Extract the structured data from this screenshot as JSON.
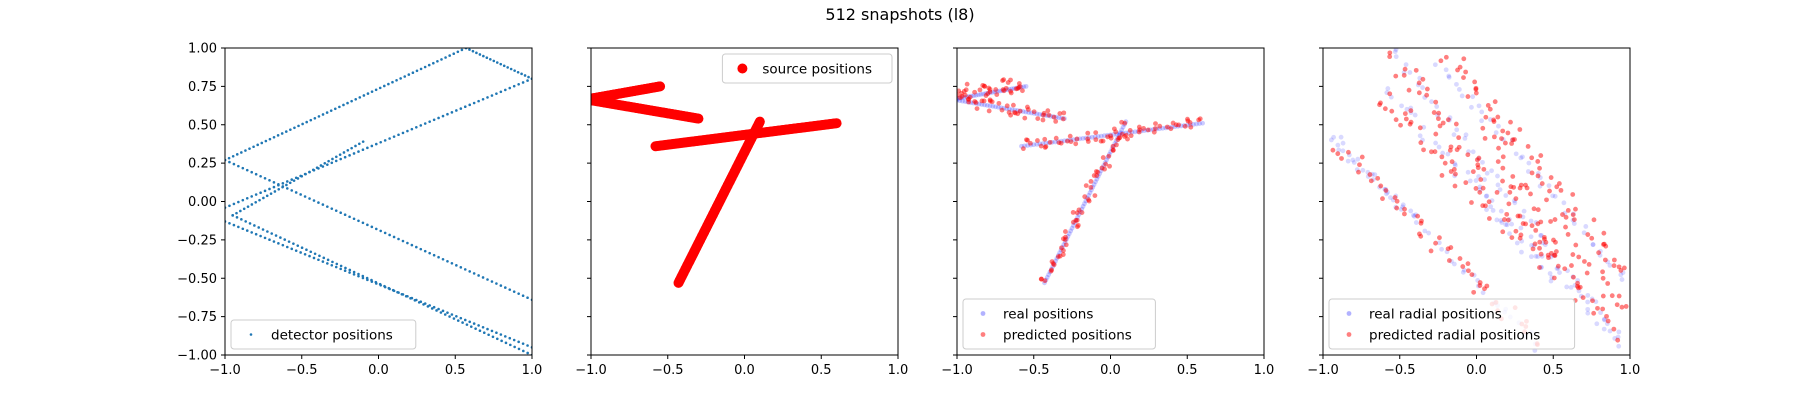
{
  "figure": {
    "title": "512 snapshots (l8)"
  },
  "chart_data": [
    {
      "type": "scatter",
      "xlim": [
        -1,
        1
      ],
      "ylim": [
        -1,
        1
      ],
      "xticks": [
        "−1.0",
        "−0.5",
        "0.0",
        "0.5",
        "1.0"
      ],
      "yticks": [
        "1.00",
        "0.75",
        "0.50",
        "0.25",
        "0.00",
        "−0.25",
        "−0.50",
        "−0.75",
        "−1.00"
      ],
      "show_yticklabels": true,
      "legend_position": "lower-left",
      "series": [
        {
          "name": "detector positions",
          "color": "#1f77b4",
          "marker": "dot",
          "segments": [
            {
              "from": [
                -1.0,
                0.27
              ],
              "to": [
                0.57,
                1.0
              ],
              "n": 60
            },
            {
              "from": [
                0.57,
                1.0
              ],
              "to": [
                1.0,
                0.8
              ],
              "n": 20
            },
            {
              "from": [
                -1.0,
                -0.04
              ],
              "to": [
                1.0,
                0.8
              ],
              "n": 70
            },
            {
              "from": [
                -1.0,
                0.27
              ],
              "to": [
                1.0,
                -0.64
              ],
              "n": 70
            },
            {
              "from": [
                -0.95,
                -0.09
              ],
              "to": [
                1.0,
                -1.0
              ],
              "n": 70
            },
            {
              "from": [
                -1.0,
                -0.13
              ],
              "to": [
                1.0,
                -0.95
              ],
              "n": 70
            },
            {
              "from": [
                -0.95,
                -0.09
              ],
              "to": [
                -0.1,
                0.39
              ],
              "n": 35
            }
          ]
        }
      ]
    },
    {
      "type": "scatter",
      "xlim": [
        -1,
        1
      ],
      "ylim": [
        -1,
        1
      ],
      "xticks": [
        "−1.0",
        "−0.5",
        "0.0",
        "0.5",
        "1.0"
      ],
      "yticks": [],
      "show_yticklabels": false,
      "legend_position": "upper-right",
      "series": [
        {
          "name": "source positions",
          "color": "#ff0000",
          "marker": "large-dot",
          "segments": [
            {
              "from": [
                -0.58,
                0.36
              ],
              "to": [
                0.6,
                0.51
              ],
              "n": 140
            },
            {
              "from": [
                -0.43,
                -0.53
              ],
              "to": [
                0.1,
                0.52
              ],
              "n": 140
            },
            {
              "from": [
                -1.0,
                0.66
              ],
              "to": [
                -0.3,
                0.54
              ],
              "n": 90
            },
            {
              "from": [
                -1.0,
                0.67
              ],
              "to": [
                -0.55,
                0.75
              ],
              "n": 70
            }
          ]
        }
      ]
    },
    {
      "type": "scatter",
      "xlim": [
        -1,
        1
      ],
      "ylim": [
        -1,
        1
      ],
      "xticks": [
        "−1.0",
        "−0.5",
        "0.0",
        "0.5",
        "1.0"
      ],
      "yticks": [],
      "show_yticklabels": false,
      "legend_position": "lower-left",
      "series": [
        {
          "name": "real positions",
          "color": "#0000ff",
          "alpha": 0.2,
          "marker": "dot",
          "segments": [
            {
              "from": [
                -0.58,
                0.36
              ],
              "to": [
                0.6,
                0.51
              ],
              "n": 60
            },
            {
              "from": [
                -0.43,
                -0.53
              ],
              "to": [
                0.1,
                0.52
              ],
              "n": 60
            },
            {
              "from": [
                -1.0,
                0.66
              ],
              "to": [
                -0.3,
                0.54
              ],
              "n": 40
            },
            {
              "from": [
                -1.0,
                0.67
              ],
              "to": [
                -0.55,
                0.75
              ],
              "n": 30
            }
          ]
        },
        {
          "name": "predicted positions",
          "color": "#ff0000",
          "alpha": 0.5,
          "marker": "dot",
          "segments": [
            {
              "from": [
                -0.58,
                0.36
              ],
              "to": [
                0.6,
                0.51
              ],
              "n": 55,
              "jitter": 0.04
            },
            {
              "from": [
                -0.43,
                -0.53
              ],
              "to": [
                0.1,
                0.52
              ],
              "n": 55,
              "jitter": 0.04
            },
            {
              "from": [
                -1.0,
                0.66
              ],
              "to": [
                -0.3,
                0.54
              ],
              "n": 40,
              "jitter": 0.04
            },
            {
              "from": [
                -1.0,
                0.7
              ],
              "to": [
                -0.55,
                0.77
              ],
              "n": 35,
              "jitter": 0.05
            }
          ]
        }
      ]
    },
    {
      "type": "scatter",
      "xlim": [
        -1,
        1
      ],
      "ylim": [
        -1,
        1
      ],
      "xticks": [
        "−1.0",
        "−0.5",
        "0.0",
        "0.5",
        "1.0"
      ],
      "yticks": [],
      "show_yticklabels": false,
      "legend_position": "lower-left",
      "series": [
        {
          "name": "real radial positions",
          "color": "#0000ff",
          "alpha": 0.15,
          "marker": "dot",
          "segments": [
            {
              "from": [
                -0.55,
                1.0
              ],
              "to": [
                0.9,
                -0.85
              ],
              "n": 55,
              "jitter": 0.03
            },
            {
              "from": [
                -0.9,
                0.4
              ],
              "to": [
                0.4,
                -0.95
              ],
              "n": 40,
              "jitter": 0.03
            },
            {
              "from": [
                -0.25,
                0.9
              ],
              "to": [
                1.0,
                -0.55
              ],
              "n": 45,
              "jitter": 0.03
            },
            {
              "from": [
                -0.6,
                0.75
              ],
              "to": [
                0.5,
                -0.5
              ],
              "n": 40,
              "jitter": 0.04
            },
            {
              "from": [
                -1.0,
                0.45
              ],
              "to": [
                -0.4,
                -0.1
              ],
              "n": 20,
              "jitter": 0.03
            },
            {
              "from": [
                0.0,
                0.15
              ],
              "to": [
                0.95,
                -0.95
              ],
              "n": 30,
              "jitter": 0.04
            }
          ]
        },
        {
          "name": "predicted radial positions",
          "color": "#ff0000",
          "alpha": 0.5,
          "marker": "dot",
          "segments": [
            {
              "from": [
                -0.55,
                0.95
              ],
              "to": [
                0.9,
                -0.85
              ],
              "n": 70,
              "jitter": 0.06
            },
            {
              "from": [
                -0.9,
                0.35
              ],
              "to": [
                0.4,
                -0.9
              ],
              "n": 50,
              "jitter": 0.06
            },
            {
              "from": [
                -0.2,
                0.95
              ],
              "to": [
                1.0,
                -0.5
              ],
              "n": 60,
              "jitter": 0.06
            },
            {
              "from": [
                -0.65,
                0.7
              ],
              "to": [
                0.55,
                -0.45
              ],
              "n": 55,
              "jitter": 0.07
            },
            {
              "from": [
                0.0,
                0.5
              ],
              "to": [
                0.95,
                -0.7
              ],
              "n": 40,
              "jitter": 0.07
            }
          ]
        }
      ]
    }
  ]
}
